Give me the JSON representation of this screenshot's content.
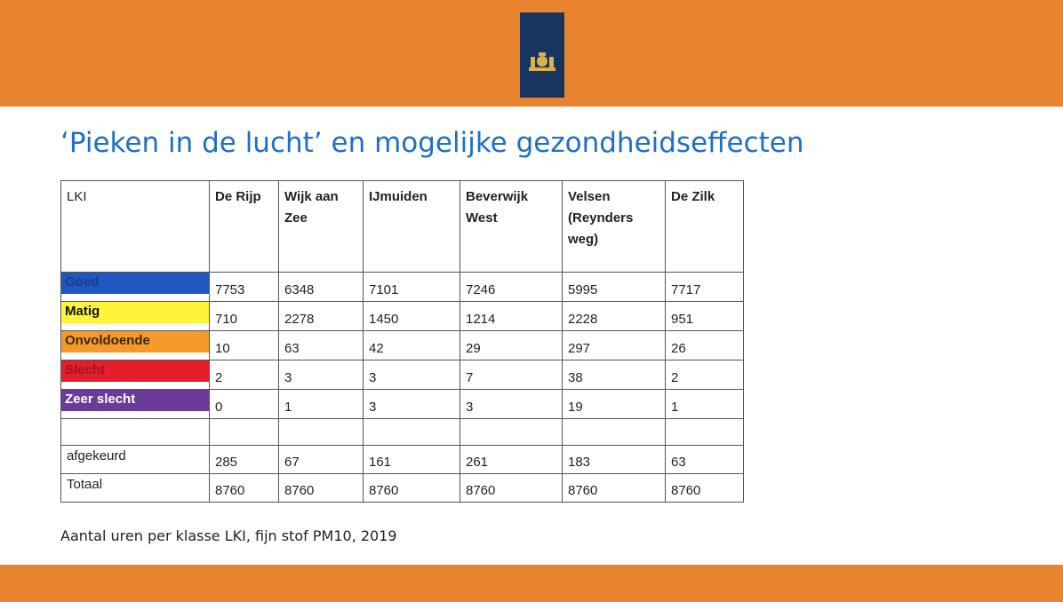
{
  "title": "‘Pieken in de lucht’ en mogelijke gezondheidseffecten",
  "table": {
    "columns": [
      "LKI",
      "De Rijp",
      "Wijk aan Zee",
      "IJmuiden",
      "Beverwijk West",
      "Velsen (Reynders weg)",
      "De Zilk"
    ],
    "rows": [
      {
        "label": "Goed",
        "values": [
          7753,
          6348,
          7101,
          7246,
          5995,
          7717
        ]
      },
      {
        "label": "Matig",
        "values": [
          710,
          2278,
          1450,
          1214,
          2228,
          951
        ]
      },
      {
        "label": "Onvoldoende",
        "values": [
          10,
          63,
          42,
          29,
          297,
          26
        ]
      },
      {
        "label": "Slecht",
        "values": [
          2,
          3,
          3,
          7,
          38,
          2
        ]
      },
      {
        "label": "Zeer slecht",
        "values": [
          0,
          1,
          3,
          3,
          19,
          1
        ]
      },
      {
        "label": "afgekeurd",
        "values": [
          285,
          67,
          161,
          261,
          183,
          63
        ]
      },
      {
        "label": "Totaal",
        "values": [
          8760,
          8760,
          8760,
          8760,
          8760,
          8760
        ]
      }
    ]
  },
  "caption": "Aantal uren per klasse LKI, fijn stof PM10, 2019"
}
